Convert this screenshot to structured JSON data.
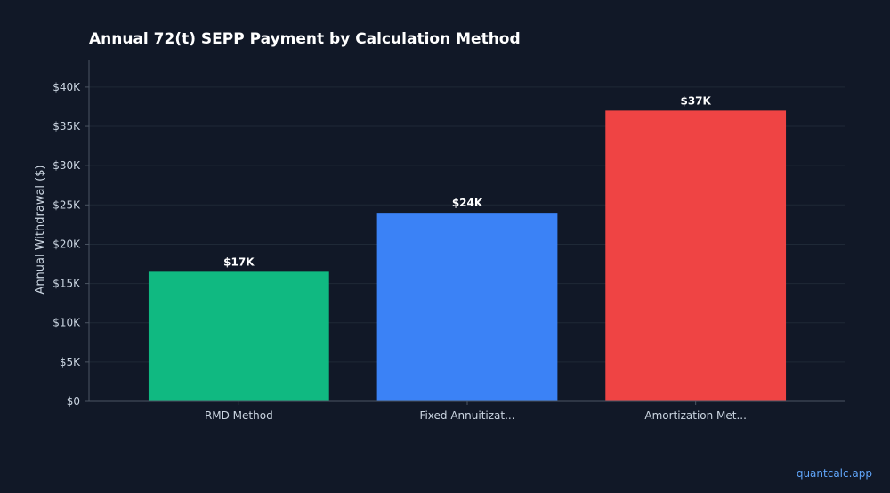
{
  "chart_data": {
    "type": "bar",
    "title": "Annual 72(t) SEPP Payment by Calculation Method",
    "xlabel": "",
    "ylabel": "Annual Withdrawal ($)",
    "categories": [
      "RMD Method",
      "Fixed Annuitizat...",
      "Amortization Met..."
    ],
    "values": [
      16500,
      24000,
      37000
    ],
    "data_labels": [
      "$17K",
      "$24K",
      "$37K"
    ],
    "colors": [
      "#10b981",
      "#3b82f6",
      "#ef4444"
    ],
    "ylim": [
      0,
      43500
    ],
    "yticks": [
      0,
      5000,
      10000,
      15000,
      20000,
      25000,
      30000,
      35000,
      40000
    ],
    "ytick_labels": [
      "$0",
      "$5K",
      "$10K",
      "$15K",
      "$20K",
      "$25K",
      "$30K",
      "$35K",
      "$40K"
    ],
    "grid": true,
    "legend": "none"
  },
  "watermark": "quantcalc.app",
  "colors": {
    "background": "#111827",
    "grid": "#1f2937",
    "axis": "#4b5563",
    "text": "#cbd5e1",
    "title": "#ffffff",
    "watermark": "#60a5fa"
  }
}
